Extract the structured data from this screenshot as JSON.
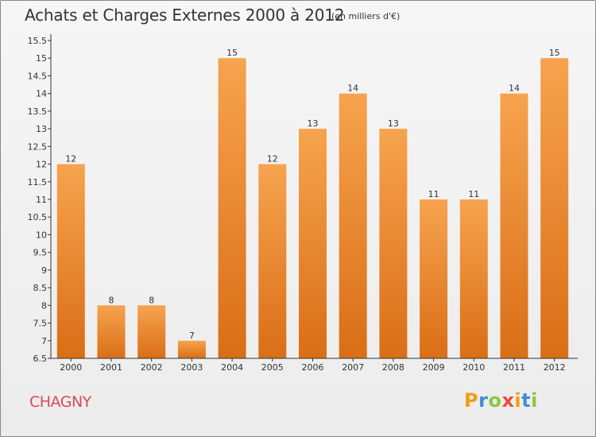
{
  "header": {
    "title": "Achats et Charges Externes 2000 à 2012",
    "subtitle": "(en milliers d'€)"
  },
  "footer": {
    "city": "CHAGNY",
    "logo": {
      "text": "Proxiti",
      "letters": [
        {
          "char": "P",
          "color": "#f39c12"
        },
        {
          "char": "r",
          "color": "#3b8fd6"
        },
        {
          "char": "o",
          "color": "#8cc63f"
        },
        {
          "char": "x",
          "color": "#e74c3c"
        },
        {
          "char": "i",
          "color": "#f39c12"
        },
        {
          "char": "t",
          "color": "#3b8fd6"
        },
        {
          "char": "i",
          "color": "#8cc63f"
        }
      ]
    }
  },
  "colors": {
    "bar_top": "#f7a34f",
    "bar_bottom": "#d96e16",
    "axis": "#333333",
    "city": "#d84a5a"
  },
  "chart_data": {
    "type": "bar",
    "categories": [
      "2000",
      "2001",
      "2002",
      "2003",
      "2004",
      "2005",
      "2006",
      "2007",
      "2008",
      "2009",
      "2010",
      "2011",
      "2012"
    ],
    "values": [
      12,
      8,
      8,
      7,
      15,
      12,
      13,
      14,
      13,
      11,
      11,
      14,
      15
    ],
    "ylim": [
      6.5,
      15.5
    ],
    "yticks": [
      "6.5",
      "7",
      "7.5",
      "8",
      "8.5",
      "9",
      "9.5",
      "10",
      "10.5",
      "11",
      "11.5",
      "12",
      "12.5",
      "13",
      "13.5",
      "14",
      "14.5",
      "15",
      "15.5"
    ],
    "title": "Achats et Charges Externes 2000 à 2012",
    "xlabel": "",
    "ylabel": "",
    "grid": false,
    "legend": "none"
  }
}
